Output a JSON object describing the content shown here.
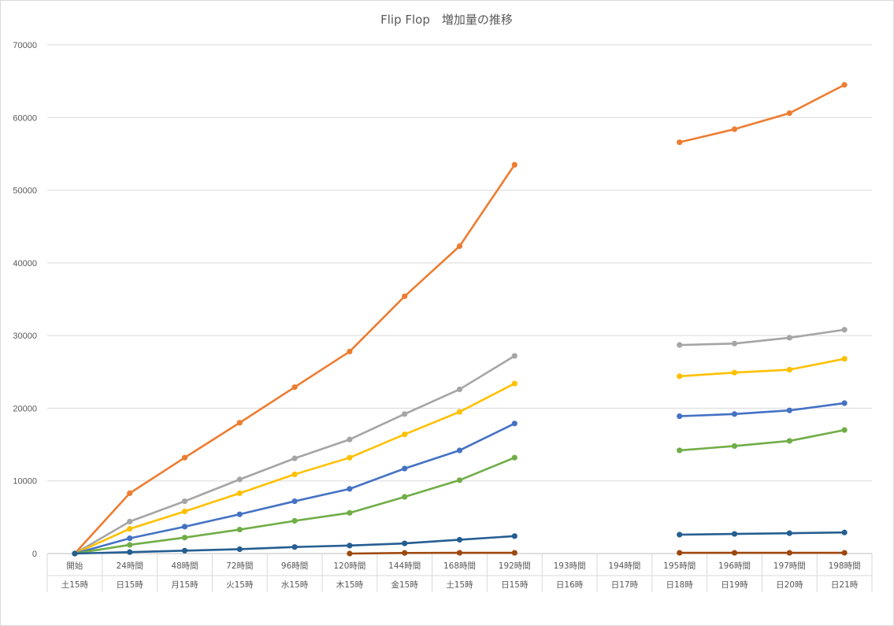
{
  "chart_data": {
    "type": "line",
    "title": "Flip Flop　増加量の推移",
    "xlabel": "",
    "ylabel": "",
    "ylim": [
      0,
      70000
    ],
    "yticks": [
      0,
      10000,
      20000,
      30000,
      40000,
      50000,
      60000,
      70000
    ],
    "grid": true,
    "legend": "none",
    "categories": [
      {
        "hours": "開始",
        "day": "土15時"
      },
      {
        "hours": "24時間",
        "day": "日15時"
      },
      {
        "hours": "48時間",
        "day": "月15時"
      },
      {
        "hours": "72時間",
        "day": "火15時"
      },
      {
        "hours": "96時間",
        "day": "水15時"
      },
      {
        "hours": "120時間",
        "day": "木15時"
      },
      {
        "hours": "144時間",
        "day": "金15時"
      },
      {
        "hours": "168時間",
        "day": "土15時"
      },
      {
        "hours": "192時間",
        "day": "日15時"
      },
      {
        "hours": "193時間",
        "day": "日16時"
      },
      {
        "hours": "194時間",
        "day": "日17時"
      },
      {
        "hours": "195時間",
        "day": "日18時"
      },
      {
        "hours": "196時間",
        "day": "日19時"
      },
      {
        "hours": "197時間",
        "day": "日20時"
      },
      {
        "hours": "198時間",
        "day": "日21時"
      }
    ],
    "series": [
      {
        "color": "#ED7D31",
        "values": [
          0,
          8300,
          13200,
          18000,
          22900,
          27800,
          35400,
          42300,
          53500,
          null,
          null,
          56600,
          58400,
          60600,
          64500
        ]
      },
      {
        "color": "#A5A5A5",
        "values": [
          0,
          4400,
          7200,
          10200,
          13100,
          15700,
          19200,
          22600,
          27200,
          null,
          null,
          28700,
          28900,
          29700,
          30800
        ]
      },
      {
        "color": "#FFC000",
        "values": [
          0,
          3400,
          5800,
          8300,
          10900,
          13200,
          16400,
          19500,
          23400,
          null,
          null,
          24400,
          24900,
          25300,
          26800
        ]
      },
      {
        "color": "#4472C4",
        "values": [
          0,
          2100,
          3700,
          5400,
          7200,
          8900,
          11700,
          14200,
          17900,
          null,
          null,
          18900,
          19200,
          19700,
          20700
        ]
      },
      {
        "color": "#70AD47",
        "values": [
          0,
          1200,
          2200,
          3300,
          4500,
          5600,
          7800,
          10100,
          13200,
          null,
          null,
          14200,
          14800,
          15500,
          17000
        ]
      },
      {
        "color": "#255E91",
        "values": [
          0,
          200,
          400,
          600,
          900,
          1100,
          1400,
          1900,
          2400,
          null,
          null,
          2600,
          2700,
          2800,
          2900
        ]
      },
      {
        "color": "#9E480E",
        "values": [
          null,
          null,
          null,
          null,
          null,
          0,
          80,
          100,
          100,
          null,
          null,
          100,
          100,
          100,
          100
        ]
      }
    ]
  }
}
